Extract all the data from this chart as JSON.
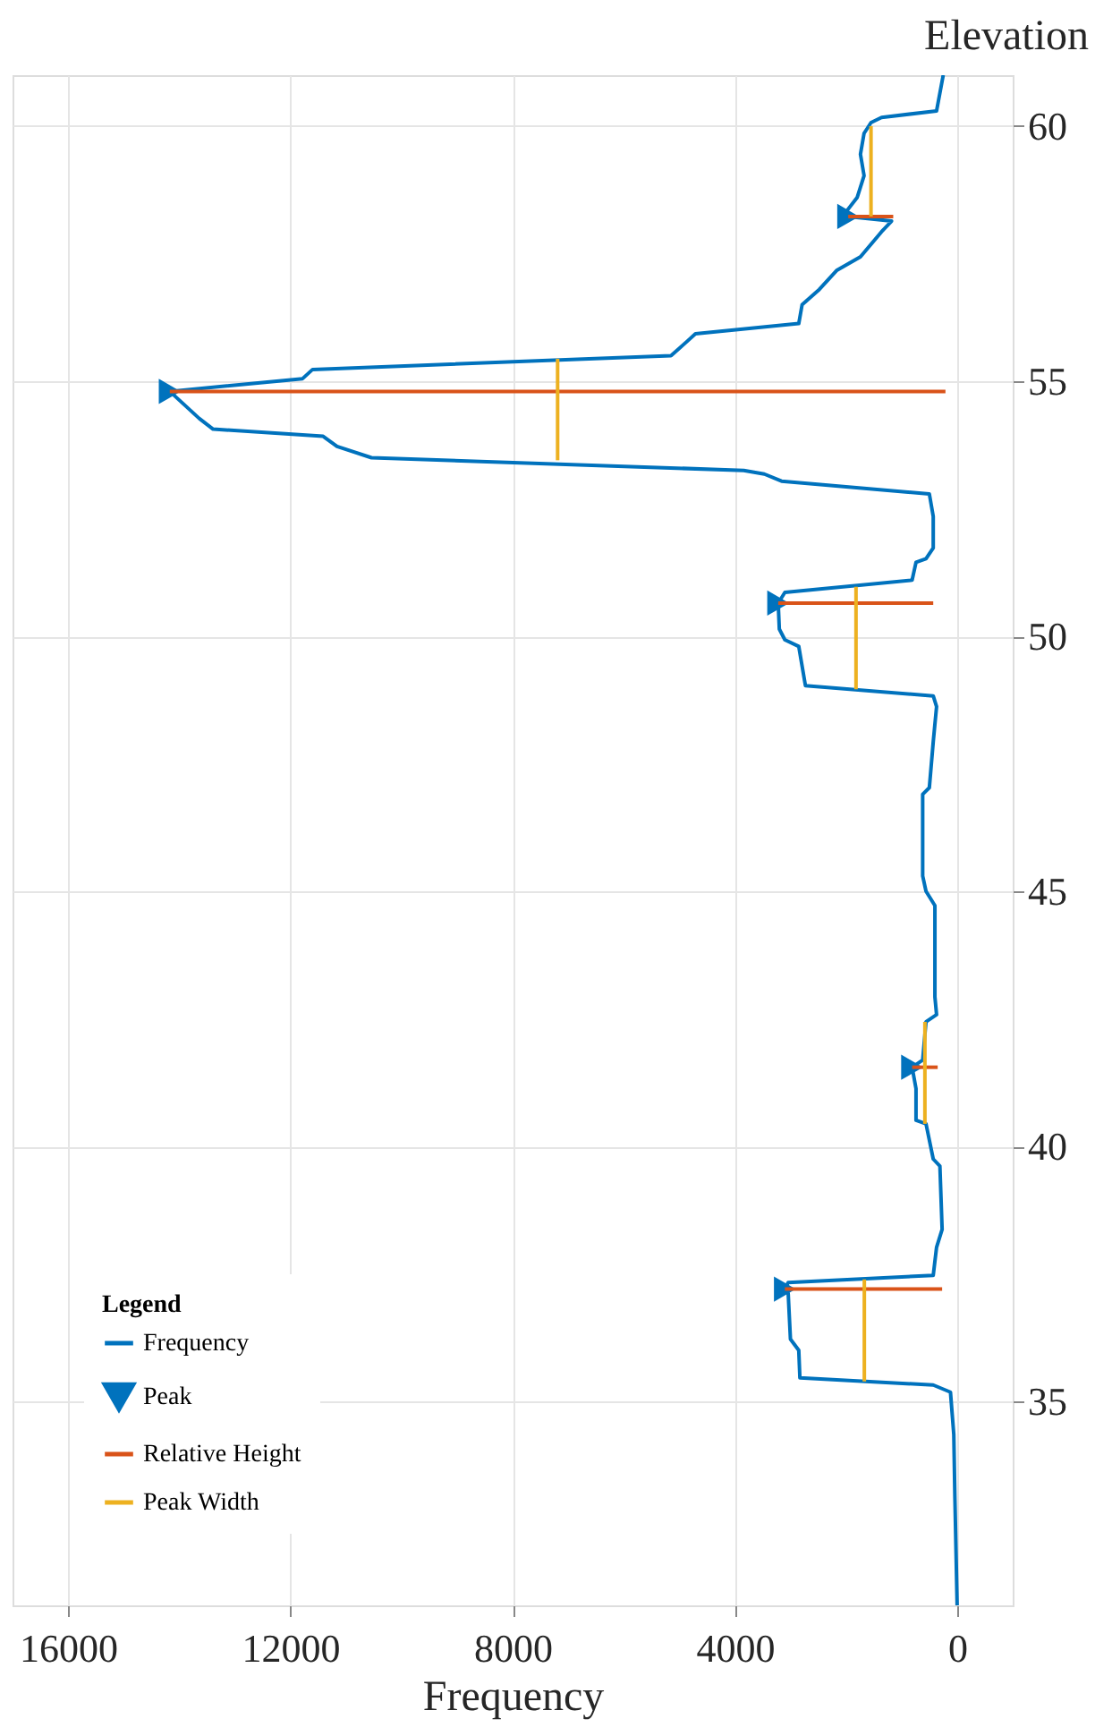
{
  "chart_data": {
    "type": "line",
    "xlabel": "Frequency",
    "ylabel": "Elevation",
    "legend_title": "Legend",
    "xlim": [
      17000,
      -1000
    ],
    "xticks": [
      16000,
      12000,
      8000,
      4000,
      0
    ],
    "ylim": [
      31,
      61
    ],
    "yticks": [
      35,
      40,
      45,
      50,
      55,
      60
    ],
    "grid": true,
    "legend": "bottom left",
    "series": [
      {
        "name": "Frequency",
        "color": "#0072bd",
        "x": [
          250,
          370,
          1360,
          1550,
          1675,
          1740,
          1675,
          1800,
          1985,
          1960,
          1180,
          1360,
          1740,
          2170,
          2480,
          2790,
          2850,
          4710,
          4840,
          5150,
          11600,
          11780,
          14170,
          13640,
          13390,
          11410,
          11160,
          10540,
          3840,
          3470,
          3160,
          500,
          430,
          430,
          560,
          740,
          810,
          3100,
          3220,
          3200,
          3100,
          2850,
          2730,
          430,
          370,
          430,
          500,
          620,
          620,
          560,
          400,
          400,
          370,
          560,
          620,
          810,
          740,
          740,
          560,
          430,
          310,
          270,
          370,
          430,
          3040,
          3100,
          3040,
          3000,
          2850,
          2830,
          430,
          120,
          60,
          40,
          0
        ],
        "values": [
          61,
          60.3,
          60.17,
          60.07,
          59.86,
          59.45,
          59.03,
          58.6,
          58.34,
          58.23,
          58.14,
          57.93,
          57.44,
          57.17,
          56.8,
          56.5,
          56.13,
          55.93,
          55.8,
          55.5,
          55.23,
          55.05,
          54.8,
          54.27,
          54.06,
          53.92,
          53.72,
          53.5,
          53.25,
          53.18,
          53.04,
          52.79,
          52.35,
          51.73,
          51.52,
          51.45,
          51.1,
          50.86,
          50.65,
          50.14,
          49.93,
          49.8,
          49.03,
          48.83,
          48.62,
          47.93,
          47.03,
          46.9,
          45.3,
          45,
          44.72,
          42.93,
          42.58,
          42.44,
          41.69,
          41.55,
          41.13,
          40.51,
          40.44,
          39.75,
          39.61,
          38.37,
          38.02,
          37.47,
          37.33,
          37.2,
          37.11,
          36.22,
          36,
          35.46,
          35.32,
          35.18,
          34.35,
          33.1,
          31
        ]
      },
      {
        "name": "Peak",
        "type": "scatter",
        "marker": "triangle",
        "color": "#0072bd",
        "x": [
          1960,
          14170,
          3220,
          810,
          3100
        ],
        "values": [
          58.23,
          54.8,
          50.65,
          41.55,
          37.2
        ]
      },
      {
        "name": "Relative Height",
        "type": "line",
        "color": "#d95319",
        "x": [
          1960,
          1150,
          null,
          14170,
          210,
          null,
          3220,
          430,
          null,
          810,
          350,
          null,
          3100,
          270
        ],
        "values": [
          58.23,
          58.23,
          null,
          54.8,
          54.8,
          null,
          50.65,
          50.65,
          null,
          41.55,
          41.55,
          null,
          37.2,
          37.2
        ]
      },
      {
        "name": "Peak Width",
        "type": "line",
        "color": "#edb120",
        "x": [
          1550,
          1550,
          null,
          7190,
          7190,
          null,
          1820,
          1820,
          null,
          580,
          580,
          null,
          1670,
          1670
        ],
        "values": [
          60,
          58.23,
          null,
          55.44,
          53.45,
          null,
          50.97,
          48.96,
          null,
          42.44,
          40.44,
          null,
          37.39,
          35.39
        ]
      }
    ]
  }
}
